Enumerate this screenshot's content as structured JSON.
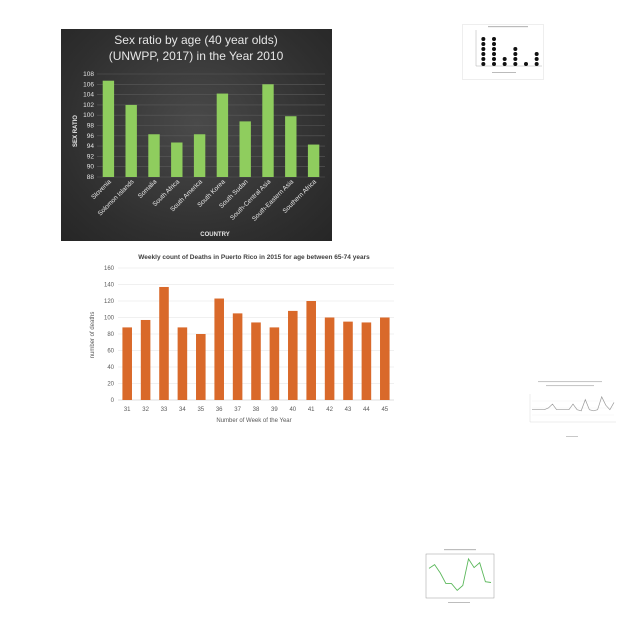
{
  "chart_data": [
    {
      "type": "bar",
      "title": "Sex ratio by age (40 year olds)",
      "subtitle": "(UNWPP, 2017) in the Year 2010",
      "xlabel": "COUNTRY",
      "ylabel": "SEX RATIO",
      "categories": [
        "Slovenia",
        "Solomon Islands",
        "Somalia",
        "South Africa",
        "South America",
        "South Korea",
        "South Sudan",
        "South-Central Asia",
        "South-Eastern Asia",
        "Southern Africa"
      ],
      "values": [
        106.7,
        102.0,
        96.3,
        94.7,
        96.3,
        104.2,
        98.8,
        106.0,
        99.8,
        94.3
      ],
      "ylim": [
        88,
        108
      ],
      "yticks": [
        88,
        90,
        92,
        94,
        96,
        98,
        100,
        102,
        104,
        106,
        108
      ],
      "grid": true,
      "colors": {
        "bar": "#8fcd5e",
        "background": "#333333",
        "text": "#e6e6e6"
      }
    },
    {
      "type": "bar",
      "title": "Weekly count of Deaths in Puerto Rico in 2015 for age between 65-74 years",
      "xlabel": "Number of Week of the Year",
      "ylabel": "number of deaths",
      "categories": [
        "31",
        "32",
        "33",
        "34",
        "35",
        "36",
        "37",
        "38",
        "39",
        "40",
        "41",
        "42",
        "43",
        "44",
        "45"
      ],
      "values": [
        88,
        97,
        137,
        88,
        80,
        123,
        105,
        94,
        88,
        108,
        120,
        100,
        95,
        94,
        100
      ],
      "ylim": [
        0,
        160
      ],
      "yticks": [
        0,
        20,
        40,
        60,
        80,
        100,
        120,
        140,
        160
      ],
      "grid": true,
      "colors": {
        "bar": "#d9692a"
      }
    },
    {
      "type": "scatter",
      "title": "",
      "values": [
        6,
        6,
        2,
        4,
        1,
        3
      ],
      "colors": {
        "dot": "#111111"
      }
    },
    {
      "type": "line",
      "title": "",
      "values": [
        22,
        22,
        22,
        22,
        25,
        32,
        22,
        22,
        22,
        22,
        32,
        22,
        20,
        40,
        22,
        20,
        22,
        45,
        30,
        22,
        35
      ],
      "colors": {
        "line": "#9a9a9a"
      }
    },
    {
      "type": "line",
      "title": "",
      "values": [
        70,
        80,
        58,
        30,
        30,
        12,
        25,
        95,
        72,
        85,
        35,
        33
      ],
      "colors": {
        "line": "#5cb85c"
      }
    }
  ]
}
